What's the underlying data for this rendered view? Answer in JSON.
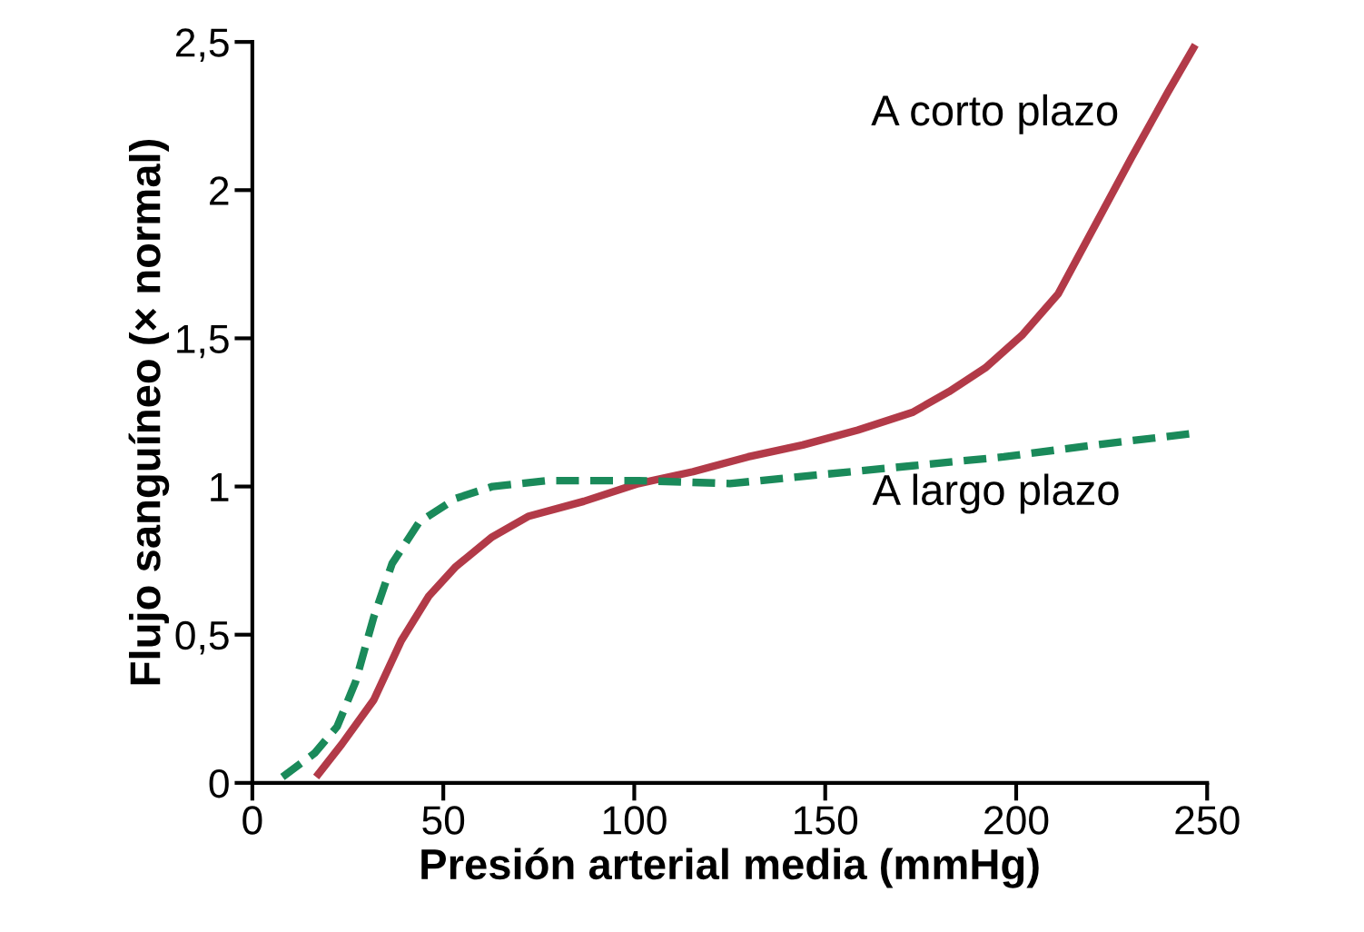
{
  "chart_data": {
    "type": "line",
    "xlabel": "Presión arterial media (mmHg)",
    "ylabel": "Flujo sanguíneo (× normal)",
    "xlim": [
      0,
      250
    ],
    "ylim": [
      0,
      2.5
    ],
    "xticks": [
      0,
      50,
      100,
      150,
      200,
      250
    ],
    "yticks": [
      0,
      {
        "value": 0.5,
        "label": "0,5"
      },
      1,
      {
        "value": 1.5,
        "label": "1,5"
      },
      2,
      {
        "value": 2.5,
        "label": "2,5"
      }
    ],
    "grid": false,
    "legend": false,
    "marker": "none",
    "series": [
      {
        "name": "A corto plazo",
        "color": "#b23a48",
        "line_style": "solid",
        "x": [
          16.7,
          23.4,
          31.8,
          39.0,
          46.2,
          53.3,
          62.8,
          72.4,
          86.8,
          101.1,
          115.4,
          129.8,
          144.1,
          158.5,
          172.8,
          182.4,
          191.9,
          201.5,
          211.0,
          220.6,
          230.2,
          239.7,
          246.9
        ],
        "values": [
          0.02,
          0.13,
          0.28,
          0.48,
          0.63,
          0.73,
          0.83,
          0.9,
          0.95,
          1.01,
          1.05,
          1.1,
          1.14,
          1.19,
          1.25,
          1.32,
          1.4,
          1.51,
          1.65,
          1.88,
          2.11,
          2.33,
          2.49
        ]
      },
      {
        "name": "A largo plazo",
        "color": "#1a8a5a",
        "line_style": "dashed",
        "x": [
          7.9,
          16.3,
          22.2,
          27.0,
          31.8,
          36.6,
          43.7,
          53.3,
          62.9,
          77.2,
          101.1,
          125.0,
          148.9,
          172.8,
          196.7,
          220.6,
          246.9
        ],
        "values": [
          0.02,
          0.1,
          0.19,
          0.34,
          0.56,
          0.74,
          0.88,
          0.96,
          1.0,
          1.02,
          1.02,
          1.01,
          1.04,
          1.07,
          1.1,
          1.14,
          1.18
        ]
      }
    ]
  }
}
